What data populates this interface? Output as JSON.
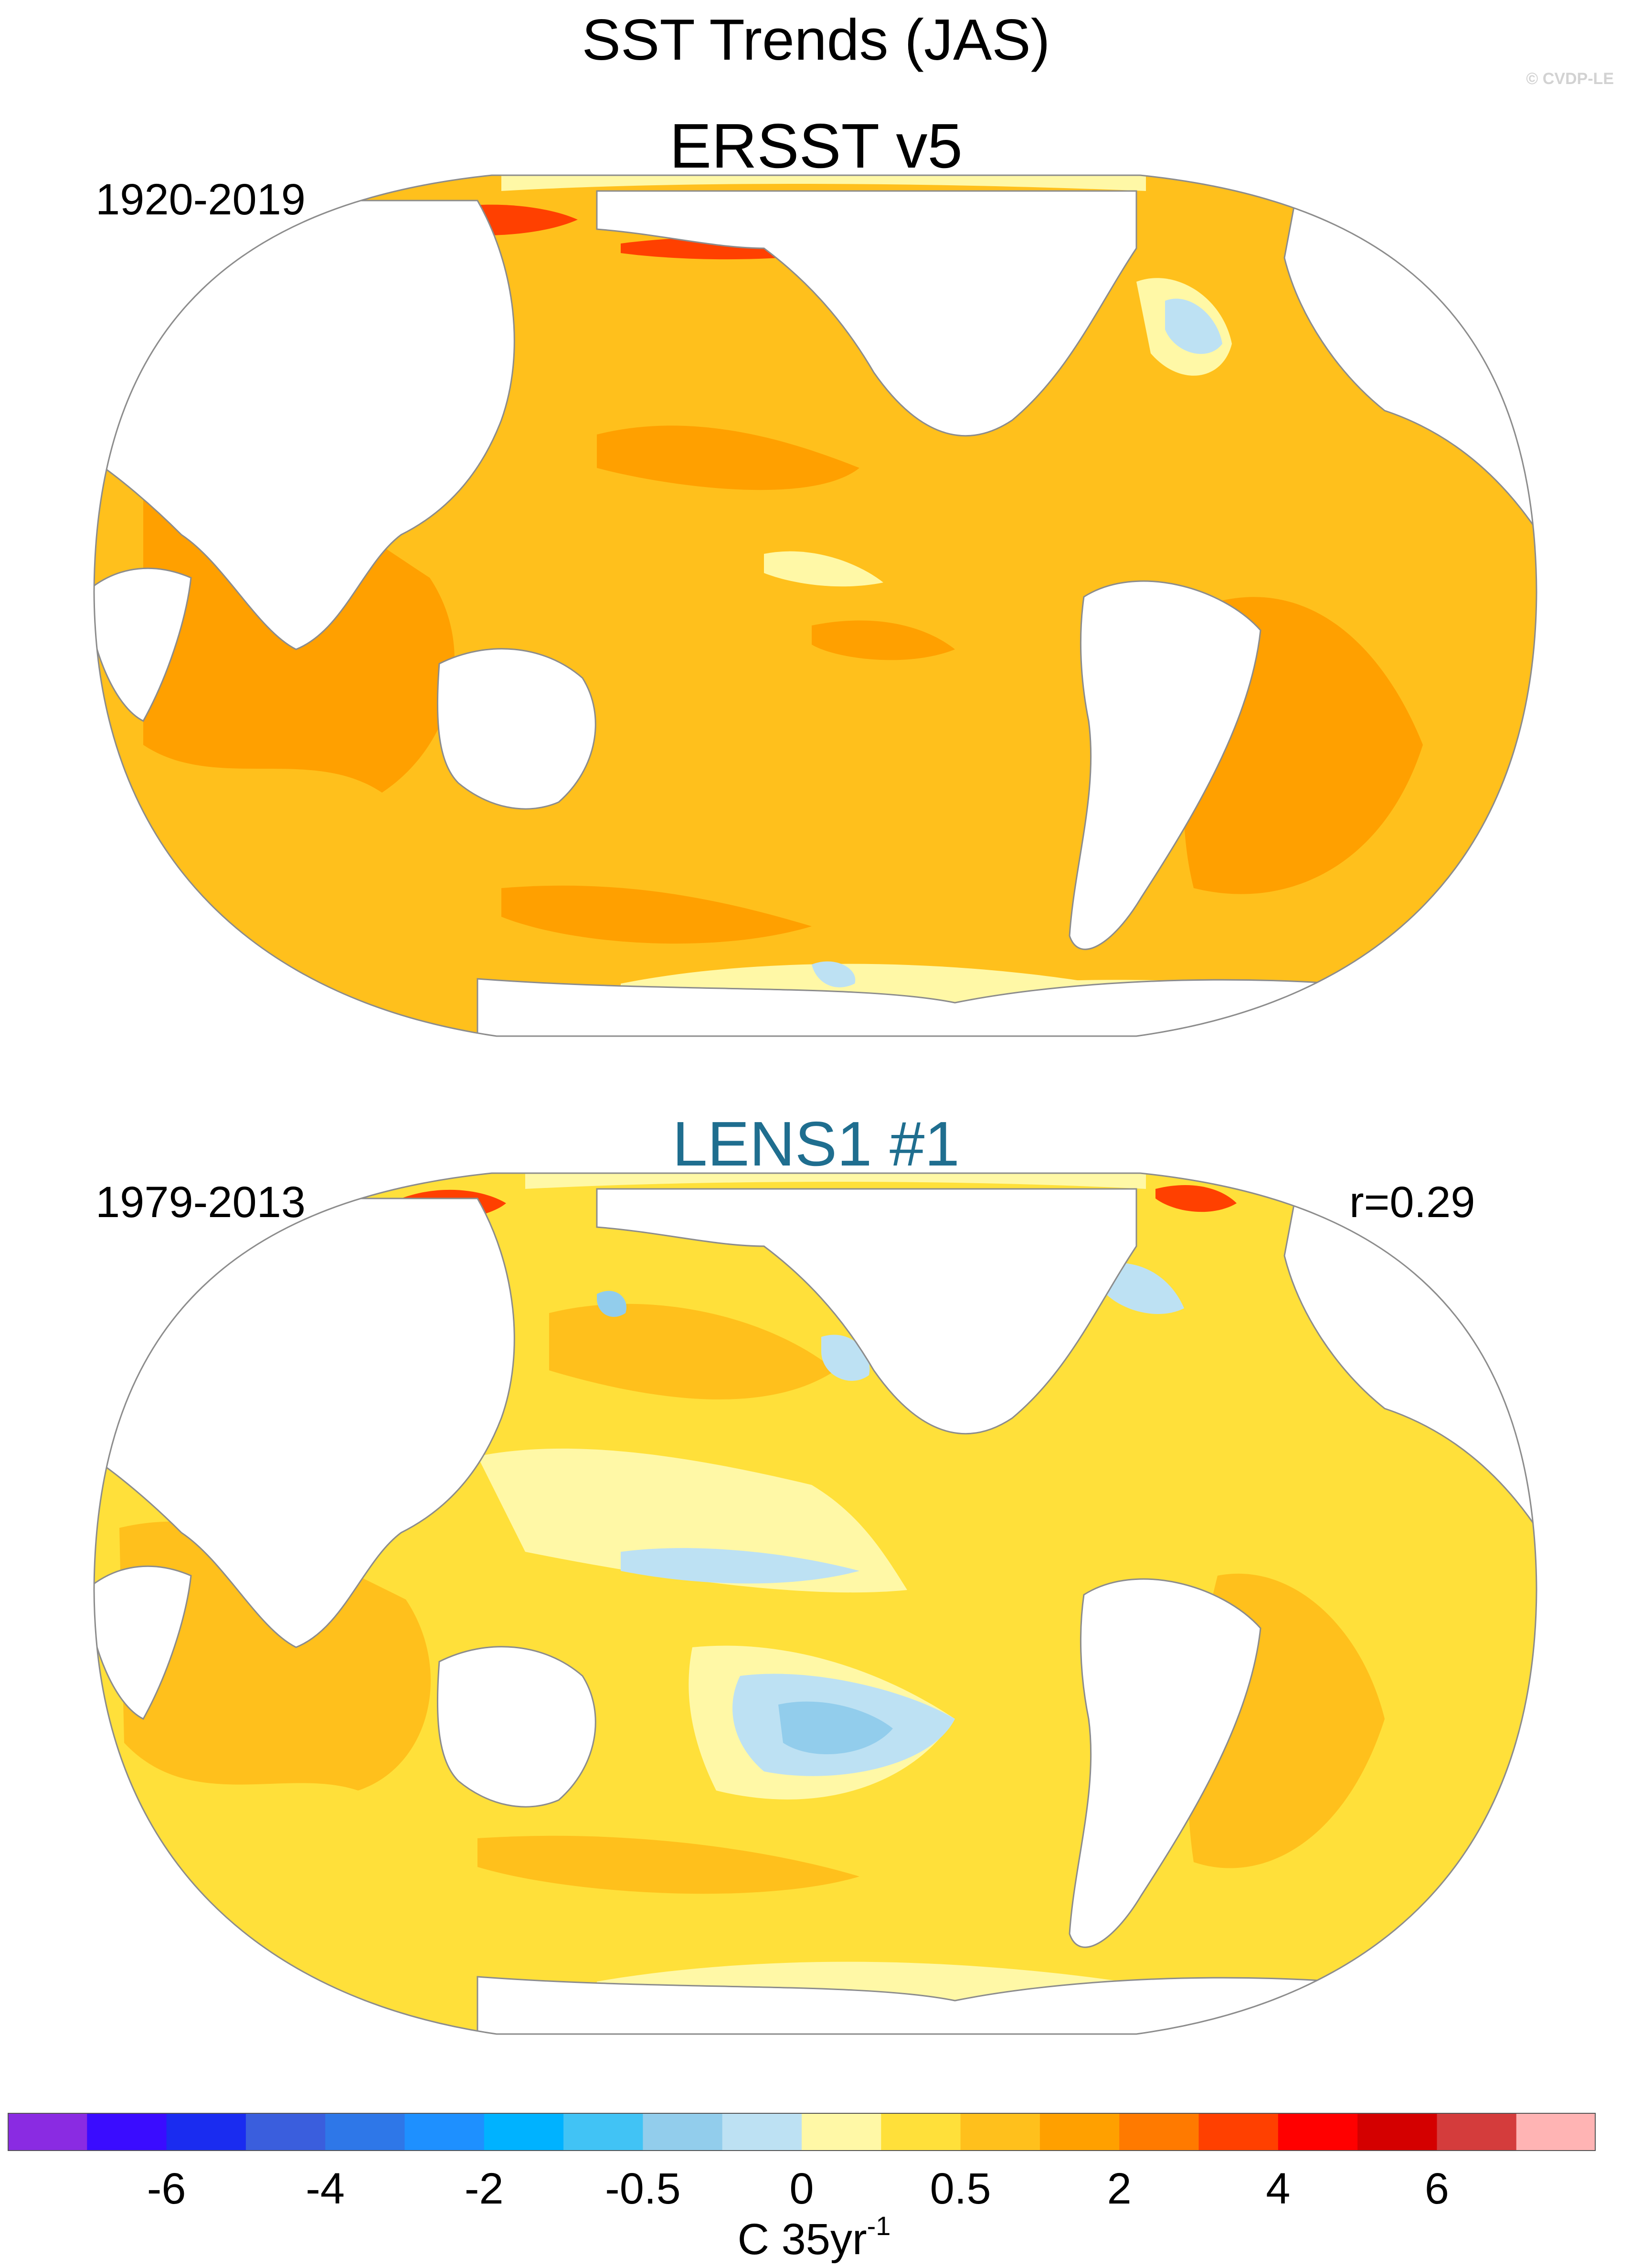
{
  "figure": {
    "title": "SST Trends (JAS)",
    "watermark": "© CVDP-LE"
  },
  "panels": [
    {
      "title": "ERSST v5",
      "title_color": "#000000",
      "period": "1920-2019",
      "correlation": ""
    },
    {
      "title": "LENS1 #1",
      "title_color": "#1f6e8f",
      "period": "1979-2013",
      "correlation": "r=0.29"
    }
  ],
  "colorbar": {
    "colors": [
      "#8a2be2",
      "#3a0cff",
      "#1a2cf0",
      "#3a5edd",
      "#2e77e8",
      "#1e90ff",
      "#00b2ff",
      "#41c3f5",
      "#92cdec",
      "#bde1f3",
      "#fff8a6",
      "#ffe03a",
      "#ffc01c",
      "#ffa000",
      "#ff7a00",
      "#ff4000",
      "#ff0000",
      "#d40000",
      "#d43c3c",
      "#ffb4b4"
    ],
    "tick_labels": [
      "-6",
      "-4",
      "-2",
      "-0.5",
      "0",
      "0.5",
      "2",
      "4",
      "6"
    ],
    "units": "C 35yr",
    "units_exponent": "-1"
  }
}
